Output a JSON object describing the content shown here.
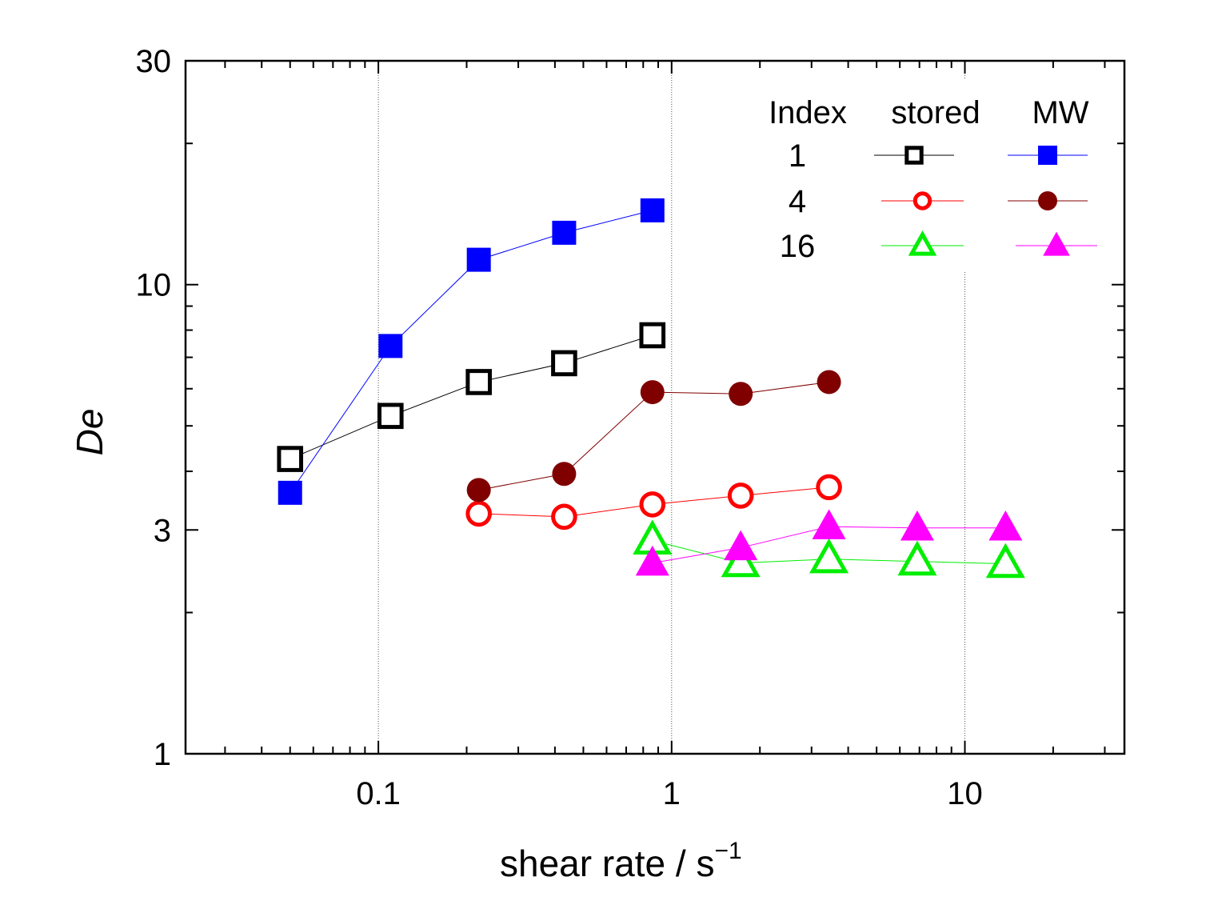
{
  "chart_data": {
    "type": "scatter",
    "title": "",
    "xlabel": "shear rate / s",
    "xlabel_superscript": "−1",
    "ylabel": "De",
    "xscale": "log",
    "yscale": "log",
    "xlim": [
      0.022,
      35
    ],
    "ylim": [
      1,
      30
    ],
    "xticks": [
      0.1,
      1,
      10
    ],
    "xtick_labels": [
      "0.1",
      "1",
      "10"
    ],
    "yticks": [
      1,
      3,
      10,
      30
    ],
    "ytick_labels": [
      "1",
      "3",
      "10",
      "30"
    ],
    "grid": "vertical dotted lines at x = 0.1, 1, 10",
    "legend": {
      "placement": "top-right",
      "headers": [
        "Index",
        "stored",
        "MW"
      ],
      "rows": [
        "1",
        "4",
        "16"
      ]
    },
    "series": [
      {
        "index": "1",
        "condition": "stored",
        "marker": "open-square",
        "color": "#000000",
        "x": [
          0.05,
          0.11,
          0.22,
          0.43,
          0.86
        ],
        "y": [
          4.25,
          5.25,
          6.2,
          6.8,
          7.8
        ]
      },
      {
        "index": "1",
        "condition": "MW",
        "marker": "filled-square",
        "color": "#0000ff",
        "x": [
          0.05,
          0.11,
          0.22,
          0.43,
          0.86
        ],
        "y": [
          3.6,
          7.4,
          11.3,
          12.9,
          14.4
        ]
      },
      {
        "index": "4",
        "condition": "stored",
        "marker": "open-circle",
        "color": "#ff0000",
        "x": [
          0.22,
          0.43,
          0.86,
          1.72,
          3.44
        ],
        "y": [
          3.25,
          3.2,
          3.4,
          3.55,
          3.7
        ]
      },
      {
        "index": "4",
        "condition": "MW",
        "marker": "filled-circle",
        "color": "#800000",
        "x": [
          0.22,
          0.43,
          0.86,
          1.72,
          3.44
        ],
        "y": [
          3.65,
          3.95,
          5.9,
          5.85,
          6.2
        ]
      },
      {
        "index": "16",
        "condition": "stored",
        "marker": "open-triangle",
        "color": "#00ee00",
        "x": [
          0.86,
          1.72,
          3.44,
          6.88,
          13.76
        ],
        "y": [
          2.85,
          2.55,
          2.6,
          2.57,
          2.54
        ]
      },
      {
        "index": "16",
        "condition": "MW",
        "marker": "filled-triangle",
        "color": "#ff00ff",
        "x": [
          0.86,
          1.72,
          3.44,
          6.88,
          13.76
        ],
        "y": [
          2.55,
          2.75,
          3.05,
          3.03,
          3.03
        ]
      }
    ]
  }
}
